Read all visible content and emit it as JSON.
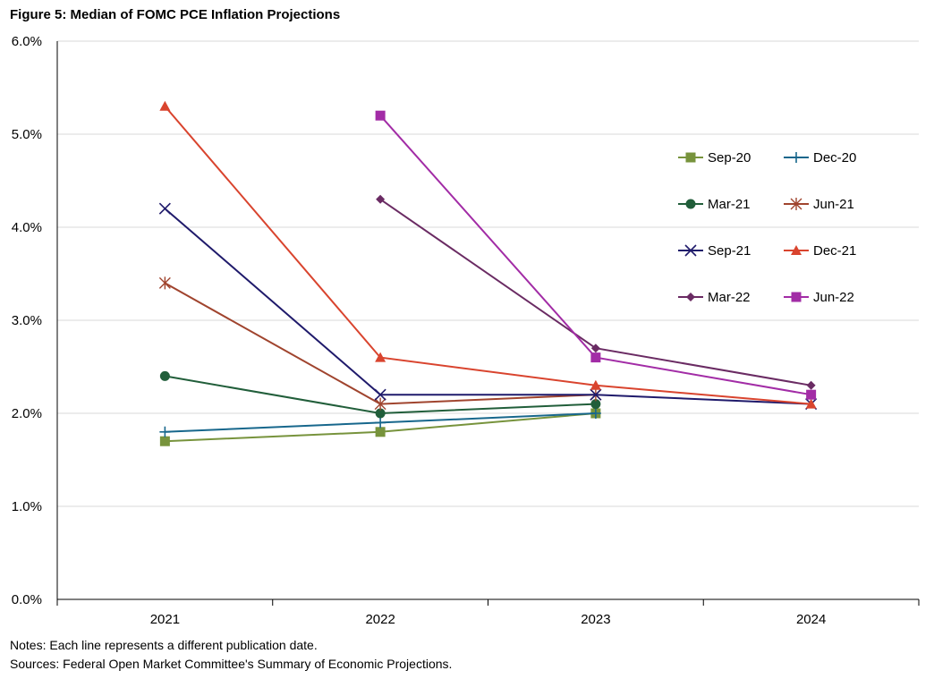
{
  "title": "Figure 5: Median of FOMC PCE Inflation Projections",
  "notes": "Notes: Each line represents a different publication date.",
  "sources": "Sources: Federal Open Market Committee's Summary of Economic Projections.",
  "chart_data": {
    "type": "line",
    "title": "Figure 5: Median of FOMC PCE Inflation Projections",
    "categories": [
      "2021",
      "2022",
      "2023",
      "2024"
    ],
    "ylim": [
      0,
      6
    ],
    "yticks": [
      "0.0%",
      "1.0%",
      "2.0%",
      "3.0%",
      "4.0%",
      "5.0%",
      "6.0%"
    ],
    "grid": true,
    "legend_position": "right",
    "series": [
      {
        "name": "Sep-20",
        "values": [
          1.7,
          1.8,
          2.0,
          null
        ],
        "color": "#77933c",
        "marker": "square"
      },
      {
        "name": "Dec-20",
        "values": [
          1.8,
          1.9,
          2.0,
          null
        ],
        "color": "#17678c",
        "marker": "plus"
      },
      {
        "name": "Mar-21",
        "values": [
          2.4,
          2.0,
          2.1,
          null
        ],
        "color": "#215e3a",
        "marker": "circle"
      },
      {
        "name": "Jun-21",
        "values": [
          3.4,
          2.1,
          2.2,
          null
        ],
        "color": "#a0442e",
        "marker": "star"
      },
      {
        "name": "Sep-21",
        "values": [
          4.2,
          2.2,
          2.2,
          2.1
        ],
        "color": "#1f1a6b",
        "marker": "x"
      },
      {
        "name": "Dec-21",
        "values": [
          5.3,
          2.6,
          2.3,
          2.1
        ],
        "color": "#d9442e",
        "marker": "triangle"
      },
      {
        "name": "Mar-22",
        "values": [
          null,
          4.3,
          2.7,
          2.3
        ],
        "color": "#6a2b63",
        "marker": "diamond"
      },
      {
        "name": "Jun-22",
        "values": [
          null,
          5.2,
          2.6,
          2.2
        ],
        "color": "#a22ca6",
        "marker": "square"
      }
    ]
  }
}
